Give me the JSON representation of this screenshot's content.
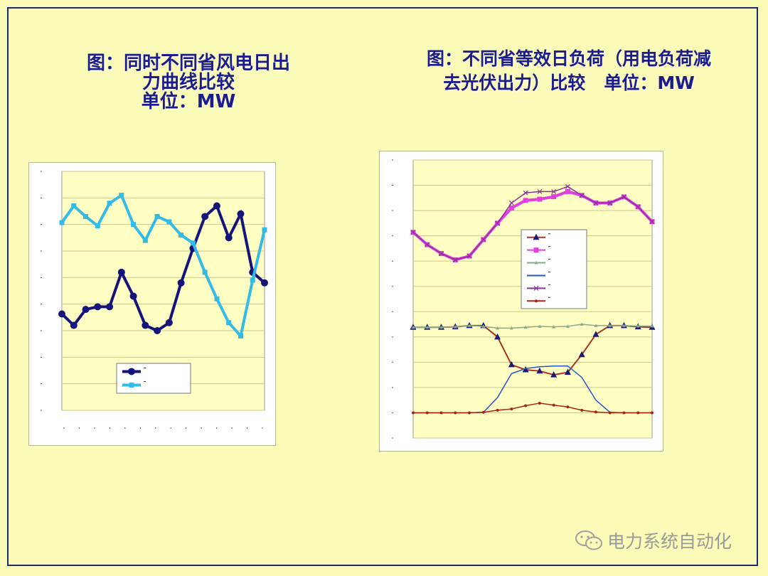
{
  "titles": {
    "left": [
      "图：同时不同省风电日出",
      "力曲线比较",
      "单位：MW"
    ],
    "right": [
      "图：不同省等效日负荷（用电负荷减",
      "去光伏出力）比较   单位：MW"
    ]
  },
  "watermark": {
    "text": "电力系统自动化",
    "icon": "wechat-icon"
  },
  "colors": {
    "background": "#fbfbb9",
    "title": "#1c1c8c",
    "plot_area": "#ffffc4",
    "border": "#1c2a6e"
  },
  "chart_data": [
    {
      "type": "line",
      "grid": "horizontal",
      "legend": "bottom-center",
      "ylim": [
        0,
        9
      ],
      "tick_labels_legible": false,
      "series": [
        {
          "marker": "circle",
          "color": "#14147a",
          "values": [
            3.63,
            3.2,
            3.8,
            3.9,
            3.9,
            5.2,
            4.3,
            3.2,
            3.0,
            3.3,
            4.8,
            6.1,
            7.3,
            7.7,
            6.5,
            7.4,
            5.2,
            4.8
          ]
        },
        {
          "marker": "x-square",
          "color": "#33bbe8",
          "values": [
            7.07,
            7.7,
            7.3,
            6.95,
            7.8,
            8.1,
            7.0,
            6.4,
            7.3,
            7.1,
            6.6,
            6.3,
            5.2,
            4.2,
            3.3,
            2.8,
            4.9,
            6.8
          ]
        }
      ]
    },
    {
      "type": "line",
      "grid": "horizontal",
      "legend": "center",
      "ylim": [
        -1,
        10
      ],
      "tick_labels_legible": false,
      "series": [
        {
          "marker": "triangle",
          "color": "#1a1a7a",
          "line": "#aa3322",
          "values": [
            3.38,
            3.38,
            3.38,
            3.4,
            3.45,
            3.45,
            3.0,
            1.9,
            1.7,
            1.65,
            1.5,
            1.6,
            2.3,
            3.1,
            3.45,
            3.45,
            3.4,
            3.38
          ]
        },
        {
          "marker": "square",
          "color": "#e23ee2",
          "values": [
            7.14,
            6.65,
            6.3,
            6.05,
            6.2,
            6.85,
            7.5,
            8.1,
            8.4,
            8.45,
            8.55,
            8.75,
            8.6,
            8.3,
            8.3,
            8.54,
            8.15,
            7.56
          ]
        },
        {
          "marker": "small-triangle",
          "color": "#88aa88",
          "values": [
            3.38,
            3.38,
            3.38,
            3.4,
            3.45,
            3.42,
            3.35,
            3.35,
            3.38,
            3.42,
            3.4,
            3.42,
            3.5,
            3.45,
            3.45,
            3.45,
            3.43,
            3.43
          ]
        },
        {
          "marker": "none",
          "color": "#2255cc",
          "values": [
            0,
            0,
            0,
            0,
            0,
            0.02,
            0.6,
            1.55,
            1.75,
            1.82,
            1.85,
            1.85,
            1.4,
            0.5,
            0.02,
            0,
            0,
            0
          ]
        },
        {
          "marker": "x",
          "color": "#883399",
          "values": [
            7.14,
            6.65,
            6.3,
            6.05,
            6.2,
            6.85,
            7.5,
            8.3,
            8.7,
            8.75,
            8.75,
            8.95,
            8.6,
            8.3,
            8.3,
            8.54,
            8.15,
            7.56
          ]
        },
        {
          "marker": "dot",
          "color": "#aa2211",
          "values": [
            0,
            0,
            0,
            0,
            0,
            0.02,
            0.1,
            0.15,
            0.28,
            0.38,
            0.3,
            0.23,
            0.1,
            0.03,
            0,
            0,
            0,
            0
          ]
        }
      ]
    }
  ]
}
